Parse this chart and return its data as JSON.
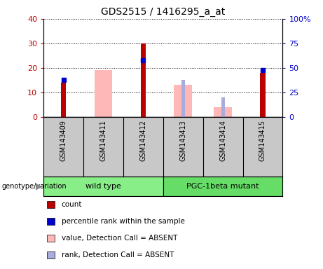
{
  "title": "GDS2515 / 1416295_a_at",
  "samples": [
    "GSM143409",
    "GSM143411",
    "GSM143412",
    "GSM143413",
    "GSM143414",
    "GSM143415"
  ],
  "count_values": [
    14,
    null,
    30,
    null,
    null,
    18
  ],
  "rank_values": [
    15,
    null,
    23,
    null,
    null,
    19
  ],
  "absent_value": [
    null,
    19,
    null,
    13,
    4,
    null
  ],
  "absent_rank": [
    null,
    null,
    null,
    15,
    8,
    null
  ],
  "ylim_left": [
    0,
    40
  ],
  "ylim_right": [
    0,
    100
  ],
  "left_ticks": [
    0,
    10,
    20,
    30,
    40
  ],
  "right_ticks": [
    0,
    25,
    50,
    75,
    100
  ],
  "right_tick_labels": [
    "0",
    "25",
    "50",
    "75",
    "100%"
  ],
  "count_color": "#bb0000",
  "rank_color": "#0000cc",
  "absent_value_color": "#ffb8b8",
  "absent_rank_color": "#aaaadd",
  "wt_color": "#88ee88",
  "pgc_color": "#66dd66",
  "label_bg": "#c8c8c8",
  "genotype_label": "genotype/variation",
  "title_fontsize": 10,
  "tick_fontsize": 8,
  "sample_fontsize": 7,
  "legend_fontsize": 7.5,
  "group_fontsize": 8
}
